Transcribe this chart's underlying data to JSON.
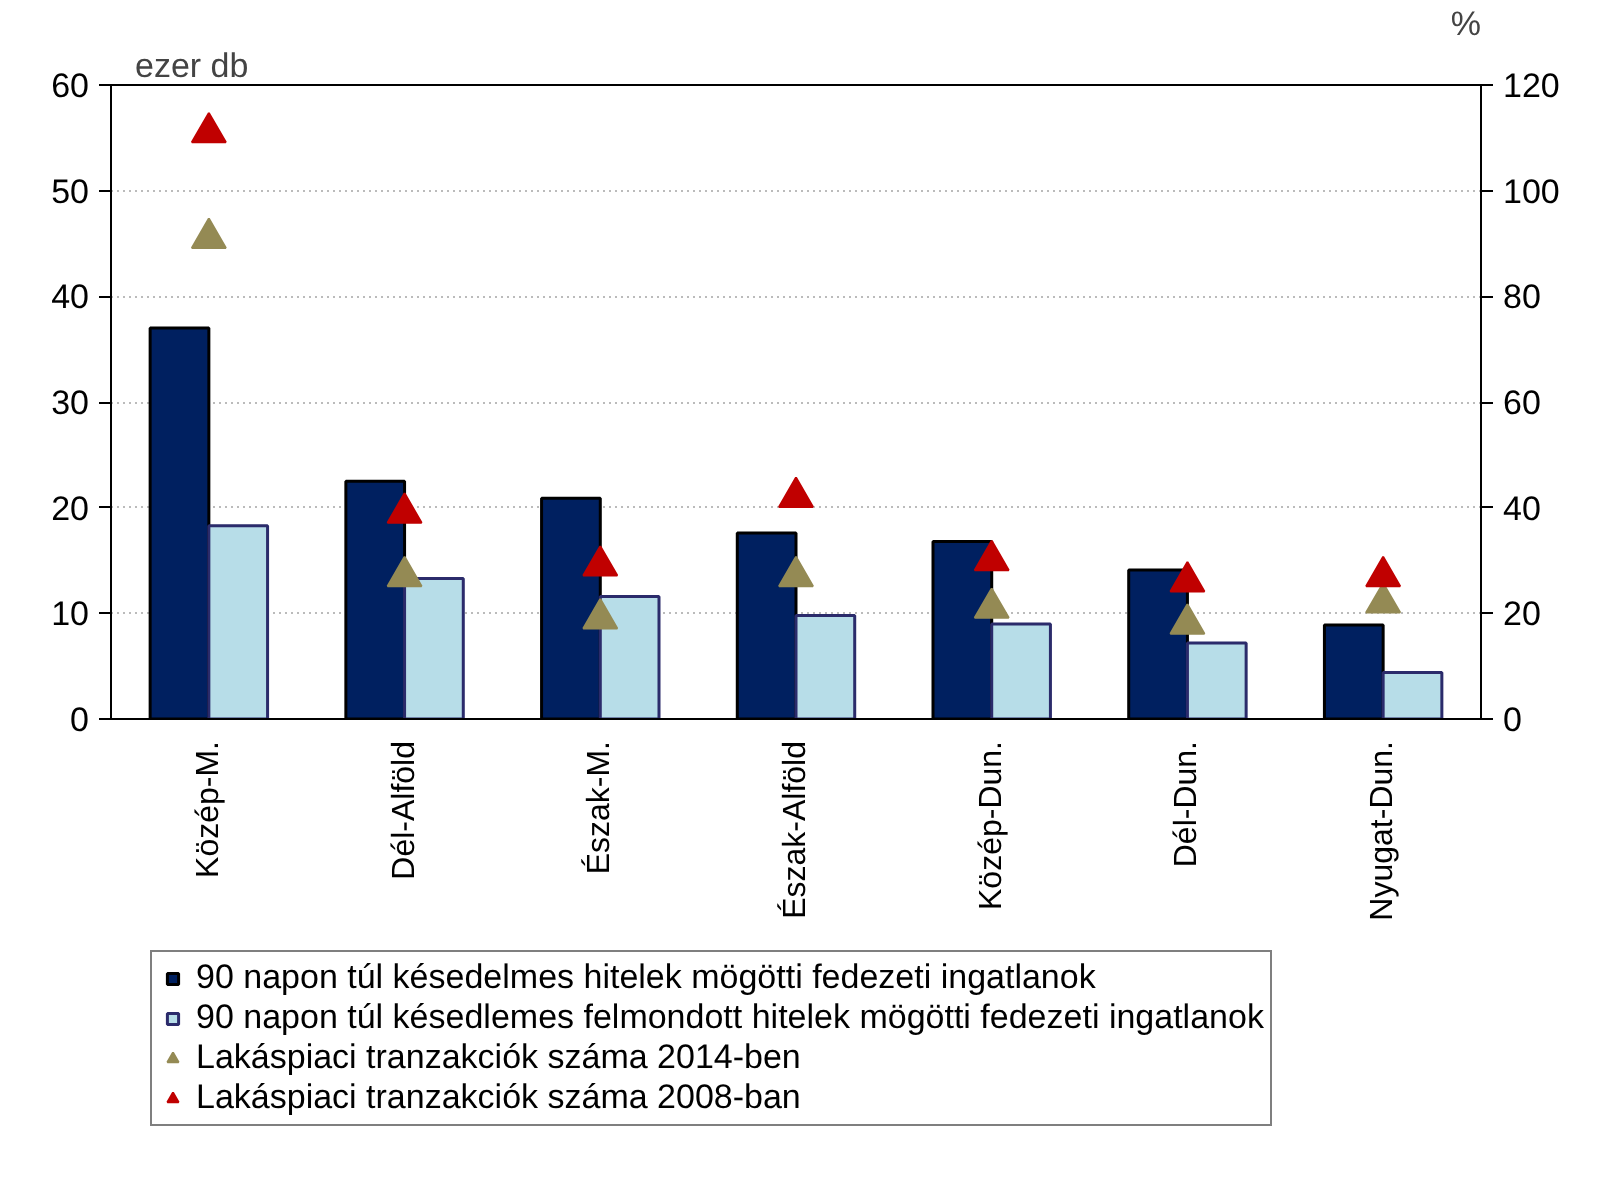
{
  "chart_data": {
    "type": "bar",
    "ylabel": "ezer db",
    "y2label": "%",
    "categories": [
      "Közép-M.",
      "Dél-Alföld",
      "Észak-M.",
      "Észak-Alföld",
      "Közép-Dun.",
      "Dél-Dun.",
      "Nyugat-Dun."
    ],
    "series": [
      {
        "name": "90 napon túl késedelmes hitelek mögötti fedezeti ingatlanok",
        "color": "#002060",
        "values": [
          37.0,
          22.5,
          20.9,
          17.6,
          16.8,
          14.1,
          8.9
        ]
      },
      {
        "name": "90 napon túl késedlemes felmondott hitelek mögötti fedezeti ingatlanok",
        "color": "#b7dde8",
        "values": [
          18.3,
          13.3,
          11.6,
          9.8,
          9.0,
          7.2,
          4.4
        ]
      },
      {
        "name": "Lakáspiaci tranzakciók száma 2014-ben",
        "color": "#948a54",
        "type": "scatter",
        "axis": "y2",
        "marker": "triangle",
        "values": [
          91,
          27,
          19,
          27,
          21,
          18,
          22
        ]
      },
      {
        "name": "Lakáspiaci tranzakciók száma 2008-ban",
        "color": "#c00000",
        "type": "scatter",
        "axis": "y2",
        "marker": "triangle",
        "values": [
          111,
          39,
          29,
          42,
          30,
          26,
          27
        ]
      }
    ],
    "ylim": [
      0,
      60
    ],
    "yticks": [
      0,
      10,
      20,
      30,
      40,
      50,
      60
    ],
    "y2lim": [
      0,
      120
    ],
    "y2ticks": [
      0,
      20,
      40,
      60,
      80,
      100,
      120
    ],
    "grid": "y",
    "legend": "bottom"
  }
}
